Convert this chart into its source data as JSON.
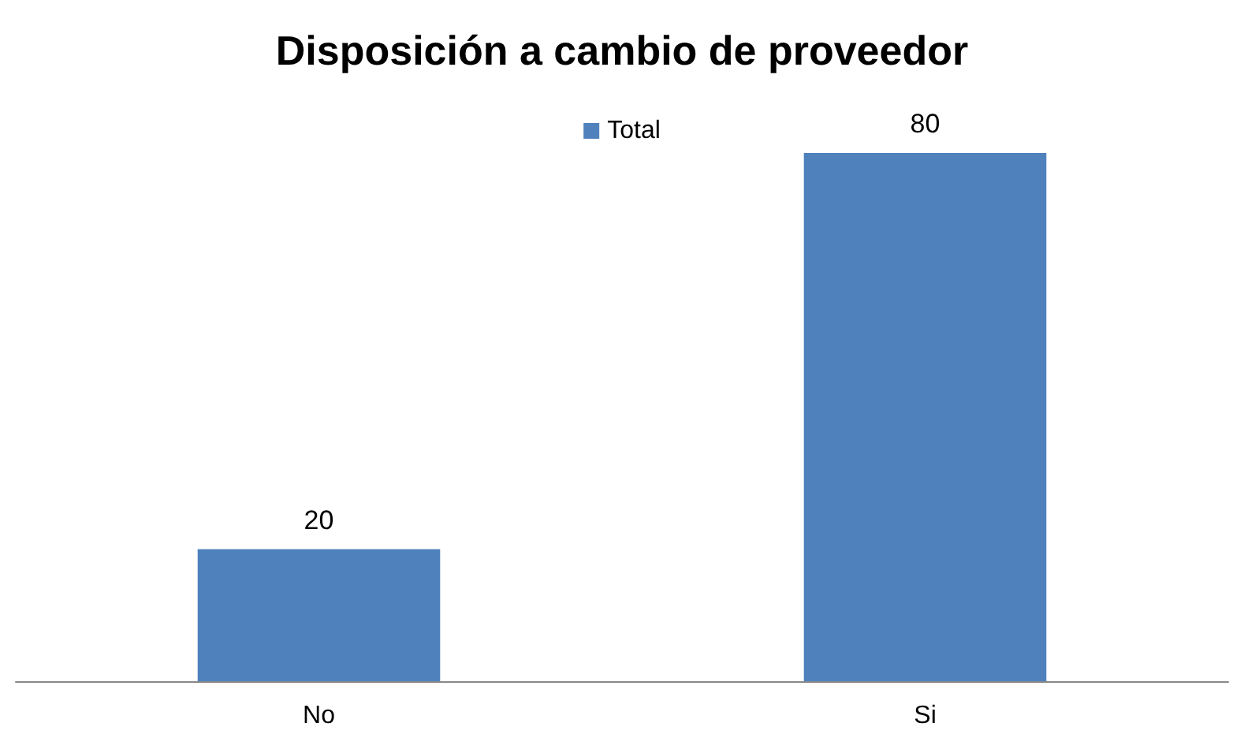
{
  "chart_data": {
    "type": "bar",
    "title": "Disposición a cambio de proveedor",
    "categories": [
      "No",
      "Si"
    ],
    "series": [
      {
        "name": "Total",
        "color": "#4f81bd",
        "values": [
          20,
          80
        ]
      }
    ],
    "data_labels": true,
    "legend": "top",
    "grid": false
  }
}
